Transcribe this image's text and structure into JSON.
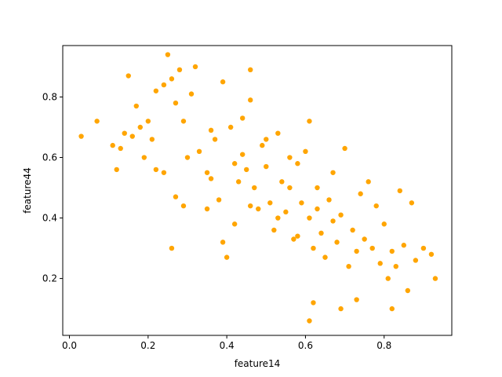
{
  "chart_data": {
    "type": "scatter",
    "xlabel": "feature14",
    "ylabel": "feature44",
    "xlim": [
      -0.017,
      0.972
    ],
    "ylim": [
      0.012,
      0.97
    ],
    "x_ticks": [
      0.0,
      0.2,
      0.4,
      0.6,
      0.8
    ],
    "x_tick_labels": [
      "0.0",
      "0.2",
      "0.4",
      "0.6",
      "0.8"
    ],
    "y_ticks": [
      0.2,
      0.4,
      0.6,
      0.8
    ],
    "y_tick_labels": [
      "0.2",
      "0.4",
      "0.6",
      "0.8"
    ],
    "grid": false,
    "legend": false,
    "marker_color": "#ffa500",
    "series": [
      {
        "points": [
          [
            0.03,
            0.67
          ],
          [
            0.07,
            0.72
          ],
          [
            0.11,
            0.64
          ],
          [
            0.12,
            0.56
          ],
          [
            0.13,
            0.63
          ],
          [
            0.14,
            0.68
          ],
          [
            0.15,
            0.87
          ],
          [
            0.16,
            0.67
          ],
          [
            0.17,
            0.77
          ],
          [
            0.18,
            0.7
          ],
          [
            0.19,
            0.6
          ],
          [
            0.2,
            0.72
          ],
          [
            0.21,
            0.66
          ],
          [
            0.22,
            0.82
          ],
          [
            0.22,
            0.56
          ],
          [
            0.24,
            0.84
          ],
          [
            0.25,
            0.94
          ],
          [
            0.26,
            0.86
          ],
          [
            0.27,
            0.78
          ],
          [
            0.28,
            0.89
          ],
          [
            0.29,
            0.72
          ],
          [
            0.31,
            0.81
          ],
          [
            0.32,
            0.9
          ],
          [
            0.24,
            0.55
          ],
          [
            0.26,
            0.3
          ],
          [
            0.27,
            0.47
          ],
          [
            0.29,
            0.44
          ],
          [
            0.3,
            0.6
          ],
          [
            0.33,
            0.62
          ],
          [
            0.35,
            0.55
          ],
          [
            0.39,
            0.85
          ],
          [
            0.46,
            0.89
          ],
          [
            0.46,
            0.79
          ],
          [
            0.44,
            0.73
          ],
          [
            0.41,
            0.7
          ],
          [
            0.37,
            0.66
          ],
          [
            0.36,
            0.53
          ],
          [
            0.38,
            0.46
          ],
          [
            0.39,
            0.32
          ],
          [
            0.4,
            0.27
          ],
          [
            0.42,
            0.38
          ],
          [
            0.43,
            0.52
          ],
          [
            0.44,
            0.61
          ],
          [
            0.45,
            0.56
          ],
          [
            0.47,
            0.5
          ],
          [
            0.48,
            0.43
          ],
          [
            0.49,
            0.64
          ],
          [
            0.5,
            0.57
          ],
          [
            0.51,
            0.45
          ],
          [
            0.52,
            0.36
          ],
          [
            0.53,
            0.68
          ],
          [
            0.54,
            0.52
          ],
          [
            0.55,
            0.42
          ],
          [
            0.56,
            0.5
          ],
          [
            0.57,
            0.33
          ],
          [
            0.58,
            0.58
          ],
          [
            0.59,
            0.45
          ],
          [
            0.6,
            0.62
          ],
          [
            0.61,
            0.72
          ],
          [
            0.61,
            0.4
          ],
          [
            0.62,
            0.3
          ],
          [
            0.63,
            0.5
          ],
          [
            0.64,
            0.35
          ],
          [
            0.65,
            0.27
          ],
          [
            0.66,
            0.46
          ],
          [
            0.67,
            0.55
          ],
          [
            0.68,
            0.32
          ],
          [
            0.69,
            0.41
          ],
          [
            0.7,
            0.63
          ],
          [
            0.71,
            0.24
          ],
          [
            0.72,
            0.36
          ],
          [
            0.73,
            0.29
          ],
          [
            0.74,
            0.48
          ],
          [
            0.75,
            0.33
          ],
          [
            0.76,
            0.52
          ],
          [
            0.77,
            0.3
          ],
          [
            0.78,
            0.44
          ],
          [
            0.79,
            0.25
          ],
          [
            0.8,
            0.38
          ],
          [
            0.81,
            0.2
          ],
          [
            0.82,
            0.29
          ],
          [
            0.83,
            0.24
          ],
          [
            0.84,
            0.49
          ],
          [
            0.85,
            0.31
          ],
          [
            0.86,
            0.16
          ],
          [
            0.87,
            0.45
          ],
          [
            0.88,
            0.26
          ],
          [
            0.9,
            0.3
          ],
          [
            0.92,
            0.28
          ],
          [
            0.93,
            0.2
          ],
          [
            0.61,
            0.06
          ],
          [
            0.62,
            0.12
          ],
          [
            0.69,
            0.1
          ],
          [
            0.73,
            0.13
          ],
          [
            0.82,
            0.1
          ],
          [
            0.35,
            0.43
          ],
          [
            0.36,
            0.69
          ],
          [
            0.42,
            0.58
          ],
          [
            0.46,
            0.44
          ],
          [
            0.5,
            0.66
          ],
          [
            0.53,
            0.4
          ],
          [
            0.56,
            0.6
          ],
          [
            0.58,
            0.34
          ],
          [
            0.63,
            0.43
          ],
          [
            0.67,
            0.39
          ]
        ]
      }
    ]
  }
}
